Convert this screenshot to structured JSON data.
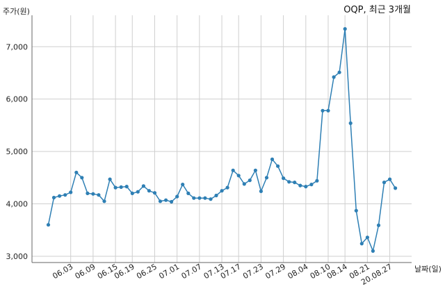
{
  "chart_data": {
    "type": "line",
    "title": "OQP, 최근 3개월",
    "ylabel": "주가(원)",
    "xlabel": "날짜(일)",
    "ylim": [
      2880,
      7600
    ],
    "yticks": [
      3000,
      4000,
      5000,
      6000,
      7000
    ],
    "ytick_labels": [
      "3,000",
      "4,000",
      "5,000",
      "6,000",
      "7,000"
    ],
    "xtick_labels": [
      "06.03",
      "06.09",
      "06.15",
      "06.19",
      "06.25",
      "07.01",
      "07.07",
      "07.13",
      "07.17",
      "07.23",
      "07.29",
      "08.04",
      "08.10",
      "08.14",
      "08.21",
      "20.08.27"
    ],
    "xtick_index": [
      4,
      8,
      12,
      15,
      19,
      23,
      27,
      31,
      34,
      38,
      42,
      46,
      50,
      53,
      57,
      61
    ],
    "grid": true,
    "color": "#2e7fb4",
    "series": [
      {
        "values": [
          3600,
          4120,
          4150,
          4170,
          4220,
          4600,
          4500,
          4200,
          4190,
          4170,
          4050,
          4470,
          4310,
          4320,
          4330,
          4200,
          4230,
          4340,
          4250,
          4210,
          4050,
          4070,
          4040,
          4140,
          4370,
          4200,
          4110,
          4110,
          4110,
          4090,
          4160,
          4250,
          4310,
          4640,
          4540,
          4380,
          4450,
          4640,
          4240,
          4500,
          4850,
          4720,
          4490,
          4420,
          4410,
          4350,
          4330,
          4370,
          4440,
          5780,
          5780,
          6420,
          6510,
          7340,
          5540,
          3870,
          3240,
          3360,
          3100,
          3590,
          4410,
          4470,
          4300
        ]
      }
    ]
  }
}
